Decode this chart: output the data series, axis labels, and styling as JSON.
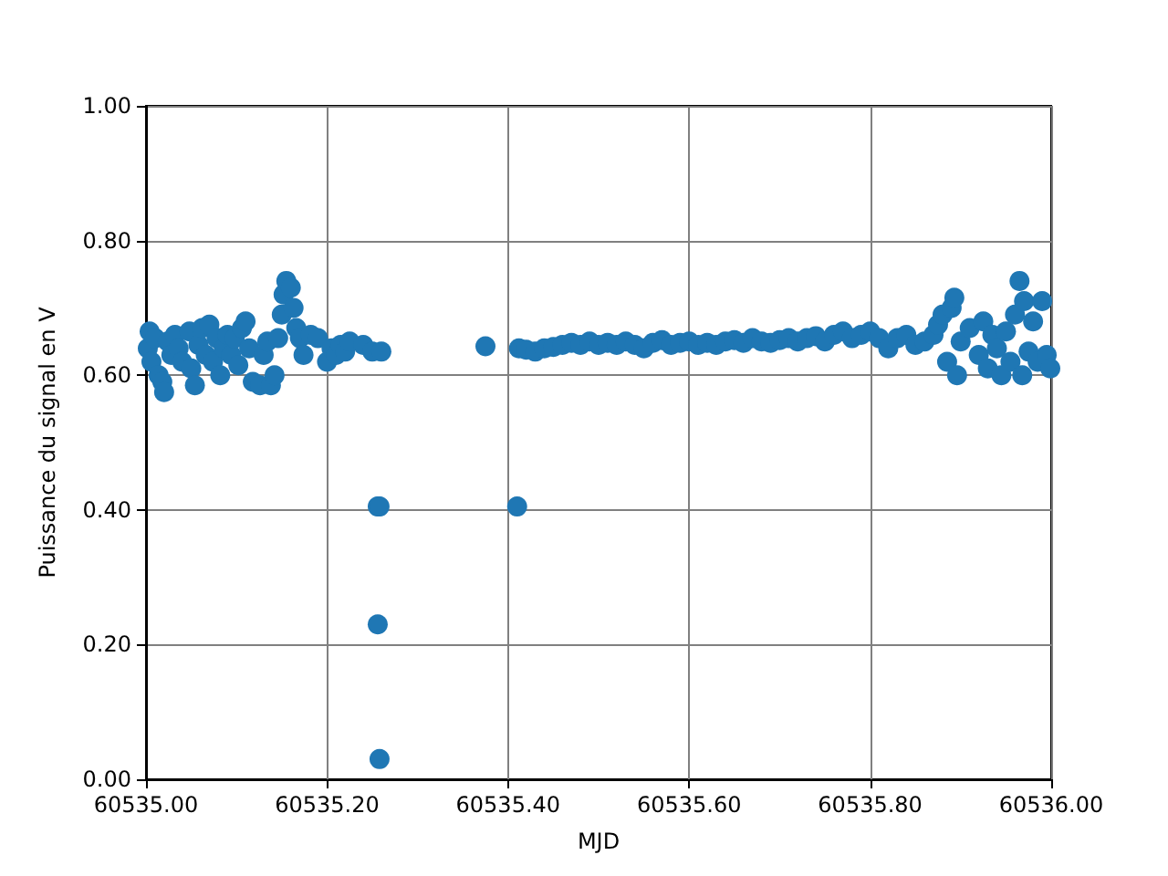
{
  "chart_data": {
    "type": "scatter",
    "xlabel": "MJD",
    "ylabel": "Puissance du signal en V",
    "x": [
      60535.002,
      60535.004,
      60535.006,
      60535.01,
      60535.014,
      60535.018,
      60535.02,
      60535.024,
      60535.028,
      60535.032,
      60535.036,
      60535.04,
      60535.048,
      60535.05,
      60535.054,
      60535.058,
      60535.062,
      60535.066,
      60535.07,
      60535.074,
      60535.078,
      60535.082,
      60535.086,
      60535.09,
      60535.094,
      60535.098,
      60535.102,
      60535.106,
      60535.11,
      60535.114,
      60535.118,
      60535.126,
      60535.13,
      60535.134,
      60535.138,
      60535.142,
      60535.146,
      60535.15,
      60535.152,
      60535.155,
      60535.16,
      60535.163,
      60535.166,
      60535.17,
      60535.174,
      60535.182,
      60535.19,
      60535.2,
      60535.205,
      60535.21,
      60535.215,
      60535.22,
      60535.225,
      60535.24,
      60535.25,
      60535.256,
      60535.258,
      60535.256,
      60535.258,
      60535.26,
      60535.375,
      60535.41,
      60535.412,
      60535.42,
      60535.43,
      60535.44,
      60535.45,
      60535.46,
      60535.47,
      60535.48,
      60535.49,
      60535.5,
      60535.51,
      60535.52,
      60535.53,
      60535.54,
      60535.55,
      60535.56,
      60535.57,
      60535.58,
      60535.59,
      60535.6,
      60535.61,
      60535.62,
      60535.63,
      60535.64,
      60535.65,
      60535.66,
      60535.67,
      60535.68,
      60535.69,
      60535.7,
      60535.71,
      60535.72,
      60535.73,
      60535.74,
      60535.75,
      60535.76,
      60535.77,
      60535.78,
      60535.79,
      60535.8,
      60535.81,
      60535.82,
      60535.83,
      60535.84,
      60535.85,
      60535.86,
      60535.87,
      60535.875,
      60535.88,
      60535.885,
      60535.89,
      60535.893,
      60535.896,
      60535.9,
      60535.91,
      60535.92,
      60535.925,
      60535.93,
      60535.935,
      60535.94,
      60535.945,
      60535.95,
      60535.955,
      60535.96,
      60535.965,
      60535.968,
      60535.97,
      60535.975,
      60535.98,
      60535.985,
      60535.99,
      60535.995,
      60535.999
    ],
    "series": [
      {
        "color": "#1f77b4",
        "values": [
          0.64,
          0.665,
          0.62,
          0.655,
          0.6,
          0.59,
          0.575,
          0.65,
          0.63,
          0.66,
          0.64,
          0.62,
          0.665,
          0.61,
          0.585,
          0.645,
          0.67,
          0.63,
          0.675,
          0.62,
          0.655,
          0.6,
          0.64,
          0.66,
          0.63,
          0.655,
          0.615,
          0.67,
          0.68,
          0.64,
          0.59,
          0.585,
          0.63,
          0.65,
          0.585,
          0.6,
          0.655,
          0.69,
          0.72,
          0.74,
          0.73,
          0.7,
          0.67,
          0.655,
          0.63,
          0.66,
          0.655,
          0.62,
          0.64,
          0.63,
          0.645,
          0.635,
          0.65,
          0.645,
          0.635,
          0.405,
          0.405,
          0.23,
          0.03,
          0.635,
          0.643,
          0.405,
          0.64,
          0.638,
          0.635,
          0.64,
          0.642,
          0.645,
          0.648,
          0.645,
          0.65,
          0.645,
          0.648,
          0.645,
          0.65,
          0.645,
          0.64,
          0.648,
          0.652,
          0.645,
          0.648,
          0.65,
          0.645,
          0.648,
          0.645,
          0.65,
          0.652,
          0.648,
          0.655,
          0.65,
          0.648,
          0.652,
          0.655,
          0.65,
          0.655,
          0.658,
          0.65,
          0.66,
          0.665,
          0.655,
          0.66,
          0.665,
          0.655,
          0.64,
          0.655,
          0.66,
          0.645,
          0.65,
          0.66,
          0.675,
          0.69,
          0.62,
          0.7,
          0.715,
          0.6,
          0.65,
          0.67,
          0.63,
          0.68,
          0.61,
          0.66,
          0.64,
          0.6,
          0.665,
          0.62,
          0.69,
          0.74,
          0.6,
          0.71,
          0.635,
          0.68,
          0.62,
          0.71,
          0.63,
          0.61
        ]
      }
    ],
    "xlim": [
      60535,
      60536
    ],
    "xticks": [
      {
        "value": 60535,
        "label": "60535.00"
      },
      {
        "value": 60535.2,
        "label": "60535.20"
      },
      {
        "value": 60535.4,
        "label": "60535.40"
      },
      {
        "value": 60535.6,
        "label": "60535.60"
      },
      {
        "value": 60535.8,
        "label": "60535.80"
      },
      {
        "value": 60536,
        "label": "60536.00"
      }
    ],
    "ylim": [
      0,
      1
    ],
    "yticks": [
      {
        "value": 0,
        "label": "0.00"
      },
      {
        "value": 0.2,
        "label": "0.20"
      },
      {
        "value": 0.4,
        "label": "0.40"
      },
      {
        "value": 0.6,
        "label": "0.60"
      },
      {
        "value": 0.8,
        "label": "0.80"
      },
      {
        "value": 1,
        "label": "1.00"
      }
    ],
    "grid": true,
    "marker": "circle"
  }
}
